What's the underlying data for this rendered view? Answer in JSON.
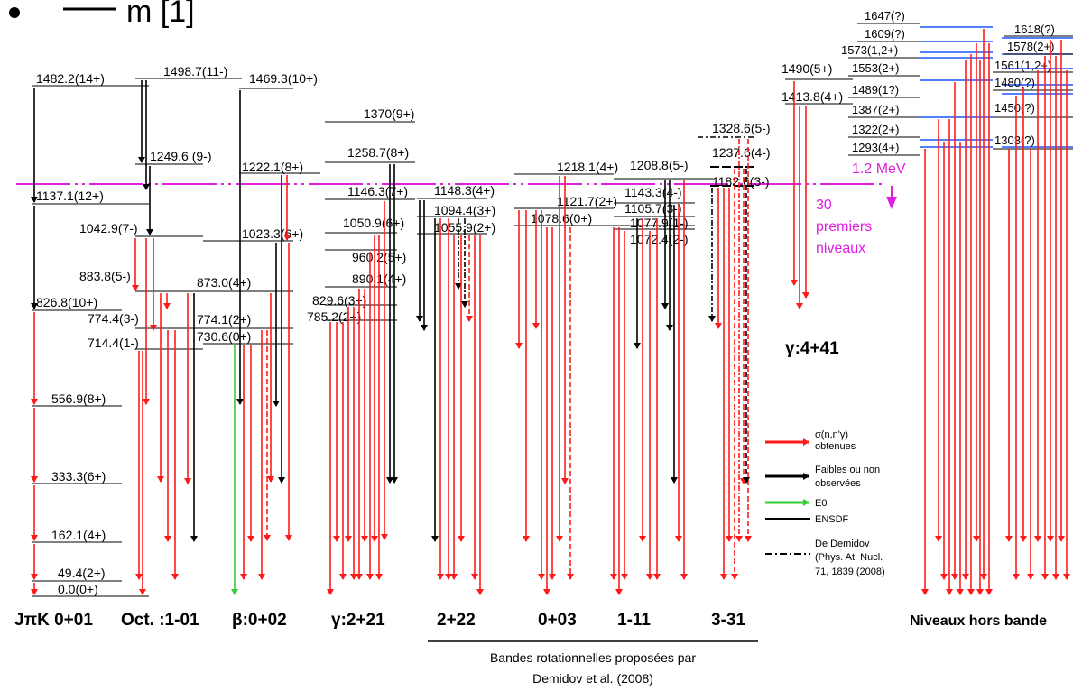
{
  "heading": "m [1]",
  "colors": {
    "observed": "#ff1a1a",
    "weak": "#000000",
    "e0": "#33cc33",
    "offband_level": "#1a55ff",
    "cutoff": "#e020e0"
  },
  "cutoff": {
    "energy": "1.2 MeV",
    "note": [
      "30",
      "premiers",
      "niveaux"
    ]
  },
  "bands": {
    "gs": {
      "label": "JπK 0+01",
      "levels": [
        "1482.2(14+)",
        "1137.1(12+)",
        "826.8(10+)",
        "556.9(8+)",
        "333.3(6+)",
        "162.1(4+)",
        "49.4(2+)",
        "0.0(0+)"
      ]
    },
    "oct": {
      "label": "Oct. :1-01",
      "levels": [
        "1498.7(11-)",
        "1249.6  (9-)",
        "1042.9(7-)",
        "883.8(5-)",
        "774.4(3-)",
        "714.4(1-)"
      ]
    },
    "beta": {
      "label": "β:0+02",
      "levels": [
        "1469.3(10+)",
        "1222.1(8+)",
        "1023.3(6+)",
        "873.0(4+)",
        "774.1(2+)",
        "730.6(0+)"
      ]
    },
    "gamma": {
      "label": "γ:2+21",
      "levels": [
        "1370(9+)",
        "1258.7(8+)",
        "1146.3(7+)",
        "1050.9(6+)",
        "960.2(5+)",
        "890.1(4+)",
        "829.6(3+)",
        "785.2(2+)"
      ]
    },
    "b22": {
      "label": "2+22",
      "levels": [
        "1148.3(4+)",
        "1094.4(3+)",
        "1055.9(2+)"
      ]
    },
    "b03": {
      "label": "0+03",
      "levels": [
        "1218.1(4+)",
        "1121.7(2+)",
        "1078.6(0+)"
      ]
    },
    "b11": {
      "label": "1-11",
      "levels": [
        "1208.8(5-)",
        "1143.3(4-)",
        "1105.7(3-)",
        "1077.9(1-)",
        "1072.4(2-)"
      ]
    },
    "b33": {
      "label": "3-31",
      "levels": [
        "1328.6(5-)",
        "1237.6(4-)",
        "1182.6(3-)"
      ]
    },
    "g44": {
      "label": "γ:4+41",
      "levels": [
        "1490(5+)",
        "1413.8(4+)"
      ]
    },
    "offband": {
      "label": "Niveaux hors bande",
      "levels_left": [
        "1647(?)",
        "1609(?)",
        "1573(1,2+)",
        "1553(2+)",
        "1489(1?)",
        "1387(2+)",
        "1322(2+)",
        "1293(4+)"
      ],
      "levels_right": [
        "1618(?)",
        "1578(2+)",
        "1561(1,2+)",
        "1480(?)",
        "1450(?)",
        "1303(?)"
      ]
    }
  },
  "group_caption": [
    "Bandes rotationnelles proposées par",
    "Demidov et al. (2008)"
  ],
  "legend": {
    "observed": [
      "σ(n,n'γ)",
      "obtenues"
    ],
    "weak": [
      "Faibles ou non",
      "observées"
    ],
    "e0": "E0",
    "ensdf": "ENSDF",
    "demidov": [
      "De Demidov",
      "(Phys. At. Nucl.",
      "71, 1839 (2008)"
    ]
  }
}
